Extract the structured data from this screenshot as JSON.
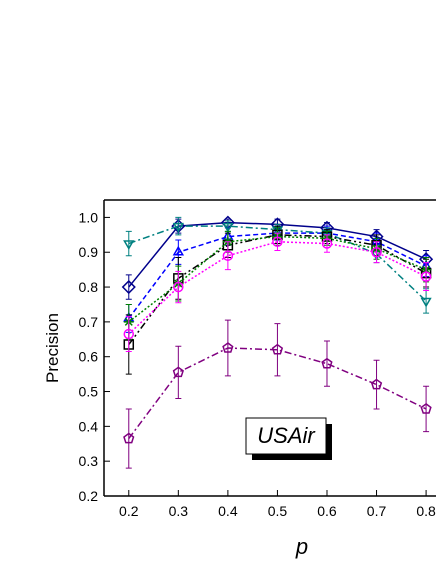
{
  "chart_data": {
    "type": "line",
    "x_label": "p",
    "y_label": "Precision",
    "annotation": "USAir",
    "x": [
      0.2,
      0.3,
      0.4,
      0.5,
      0.6,
      0.7,
      0.8
    ],
    "xlim": [
      0.15,
      0.82
    ],
    "xticks": [
      0.2,
      0.3,
      0.4,
      0.5,
      0.6,
      0.7,
      0.8
    ],
    "ylim": [
      0.2,
      1.05
    ],
    "yticks": [
      0.2,
      0.3,
      0.4,
      0.5,
      0.6,
      0.7,
      0.8,
      0.9,
      {
        "value": 1.0,
        "label": "1.0"
      }
    ],
    "series": [
      {
        "color": "#00008b",
        "marker": "diamond",
        "dash": "solid",
        "values": [
          0.8,
          0.975,
          0.985,
          0.98,
          0.97,
          0.945,
          0.88
        ],
        "errors": [
          0.035,
          0.02,
          0.01,
          0.015,
          0.015,
          0.02,
          0.025
        ]
      },
      {
        "color": "#0000ff",
        "marker": "triangle",
        "dash": "dash",
        "values": [
          0.71,
          0.9,
          0.945,
          0.955,
          0.955,
          0.93,
          0.86
        ],
        "errors": [
          0.04,
          0.035,
          0.025,
          0.02,
          0.02,
          0.025,
          0.03
        ]
      },
      {
        "color": "#008080",
        "marker": "triangle-down",
        "dash": "dashdot",
        "values": [
          0.925,
          0.975,
          0.975,
          0.965,
          0.955,
          0.895,
          0.76
        ],
        "errors": [
          0.035,
          0.025,
          0.015,
          0.015,
          0.015,
          0.025,
          0.035
        ]
      },
      {
        "color": "#000000",
        "marker": "square",
        "dash": "dashdotdot",
        "values": [
          0.635,
          0.825,
          0.92,
          0.95,
          0.945,
          0.92,
          0.84
        ],
        "errors": [
          0.085,
          0.06,
          0.035,
          0.025,
          0.02,
          0.03,
          0.04
        ]
      },
      {
        "color": "#008000",
        "marker": "star",
        "dash": "dot",
        "values": [
          0.7,
          0.81,
          0.93,
          0.945,
          0.94,
          0.91,
          0.85
        ],
        "errors": [
          0.05,
          0.05,
          0.03,
          0.025,
          0.02,
          0.03,
          0.035
        ]
      },
      {
        "color": "#ff00ff",
        "marker": "circle",
        "dash": "dot",
        "values": [
          0.665,
          0.8,
          0.89,
          0.93,
          0.925,
          0.9,
          0.83
        ],
        "errors": [
          0.05,
          0.045,
          0.04,
          0.025,
          0.025,
          0.03,
          0.04
        ]
      },
      {
        "color": "#800080",
        "marker": "pentagon",
        "dash": "dashdot",
        "values": [
          0.365,
          0.555,
          0.625,
          0.62,
          0.58,
          0.52,
          0.45
        ],
        "errors": [
          0.085,
          0.075,
          0.08,
          0.075,
          0.065,
          0.07,
          0.065
        ]
      }
    ]
  }
}
